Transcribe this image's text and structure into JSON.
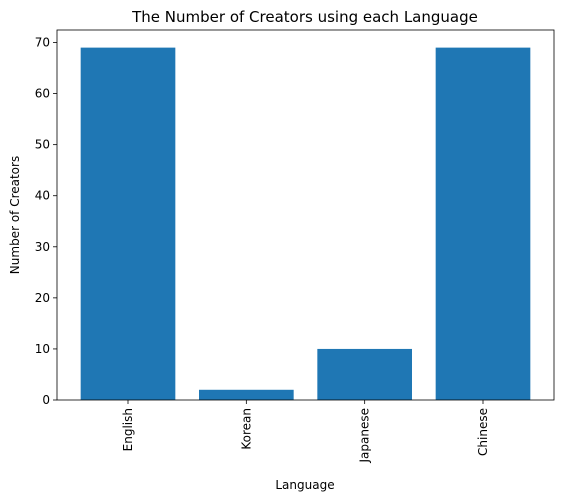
{
  "chart_data": {
    "type": "bar",
    "title": "The Number of Creators using each Language",
    "xlabel": "Language",
    "ylabel": "Number of Creators",
    "categories": [
      "English",
      "Korean",
      "Japanese",
      "Chinese"
    ],
    "values": [
      69,
      2,
      10,
      69
    ],
    "ylim": [
      0,
      72.45
    ],
    "yticks": [
      0,
      10,
      20,
      30,
      40,
      50,
      60,
      70
    ],
    "grid": false,
    "legend": "none",
    "bar_color": "#1f77b4"
  }
}
